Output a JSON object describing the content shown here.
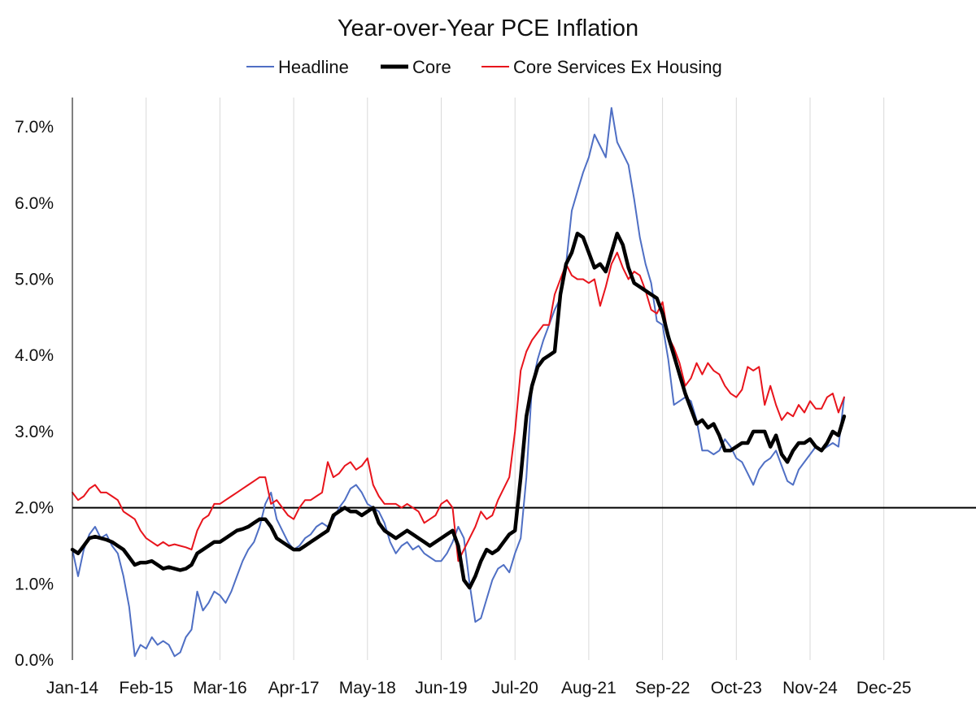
{
  "chart_data": {
    "type": "line",
    "title": "Year-over-Year PCE Inflation",
    "xlabel": "",
    "ylabel": "",
    "x_tick_labels": [
      "Jan-14",
      "Feb-15",
      "Mar-16",
      "Apr-17",
      "May-18",
      "Jun-19",
      "Jul-20",
      "Aug-21",
      "Sep-22",
      "Oct-23",
      "Nov-24",
      "Dec-25"
    ],
    "y_tick_labels": [
      "0.0%",
      "1.0%",
      "2.0%",
      "3.0%",
      "4.0%",
      "5.0%",
      "6.0%",
      "7.0%"
    ],
    "ylim": [
      0,
      7.2
    ],
    "x_start": "Jan-14",
    "x_end": "Apr-26",
    "grid": "vertical",
    "legend_position": "top",
    "reference_line": 2.0,
    "colors": {
      "Headline": "#4f6fc4",
      "Core": "#000000",
      "Core Services Ex Housing": "#e8141c",
      "grid": "#d9d9d9",
      "axis": "#000000"
    },
    "series": [
      {
        "name": "Headline",
        "values": [
          1.45,
          1.1,
          1.45,
          1.65,
          1.75,
          1.6,
          1.65,
          1.5,
          1.4,
          1.1,
          0.7,
          0.05,
          0.2,
          0.15,
          0.3,
          0.2,
          0.25,
          0.2,
          0.05,
          0.1,
          0.3,
          0.4,
          0.9,
          0.65,
          0.75,
          0.9,
          0.85,
          0.75,
          0.9,
          1.1,
          1.3,
          1.45,
          1.55,
          1.75,
          2.05,
          2.2,
          1.85,
          1.7,
          1.55,
          1.45,
          1.5,
          1.6,
          1.65,
          1.75,
          1.8,
          1.75,
          1.85,
          2.0,
          2.1,
          2.25,
          2.3,
          2.2,
          2.05,
          2.0,
          1.95,
          1.8,
          1.55,
          1.4,
          1.5,
          1.55,
          1.45,
          1.5,
          1.4,
          1.35,
          1.3,
          1.3,
          1.4,
          1.55,
          1.75,
          1.6,
          1.0,
          0.5,
          0.55,
          0.8,
          1.05,
          1.2,
          1.25,
          1.15,
          1.4,
          1.6,
          2.4,
          3.6,
          3.95,
          4.2,
          4.4,
          4.6,
          4.75,
          5.2,
          5.9,
          6.15,
          6.4,
          6.6,
          6.9,
          6.75,
          6.6,
          7.25,
          6.8,
          6.65,
          6.5,
          6.05,
          5.55,
          5.2,
          4.95,
          4.45,
          4.4,
          3.95,
          3.35,
          3.4,
          3.45,
          3.4,
          3.15,
          2.75,
          2.75,
          2.7,
          2.75,
          2.9,
          2.8,
          2.65,
          2.6,
          2.45,
          2.3,
          2.5,
          2.6,
          2.65,
          2.75,
          2.55,
          2.35,
          2.3,
          2.5,
          2.6,
          2.7,
          2.8,
          2.75,
          2.8,
          2.85,
          2.8,
          3.45
        ]
      },
      {
        "name": "Core",
        "values": [
          1.45,
          1.4,
          1.5,
          1.6,
          1.62,
          1.6,
          1.58,
          1.55,
          1.5,
          1.45,
          1.35,
          1.25,
          1.28,
          1.28,
          1.3,
          1.25,
          1.2,
          1.22,
          1.2,
          1.18,
          1.2,
          1.25,
          1.4,
          1.45,
          1.5,
          1.55,
          1.55,
          1.6,
          1.65,
          1.7,
          1.72,
          1.75,
          1.8,
          1.85,
          1.85,
          1.75,
          1.6,
          1.55,
          1.5,
          1.45,
          1.45,
          1.5,
          1.55,
          1.6,
          1.65,
          1.7,
          1.9,
          1.95,
          2.0,
          1.95,
          1.95,
          1.9,
          1.95,
          2.0,
          1.8,
          1.7,
          1.65,
          1.6,
          1.65,
          1.7,
          1.65,
          1.6,
          1.55,
          1.5,
          1.55,
          1.6,
          1.65,
          1.7,
          1.5,
          1.05,
          0.95,
          1.1,
          1.3,
          1.45,
          1.4,
          1.45,
          1.55,
          1.65,
          1.7,
          2.4,
          3.2,
          3.6,
          3.85,
          3.95,
          4.0,
          4.05,
          4.8,
          5.2,
          5.35,
          5.6,
          5.55,
          5.35,
          5.15,
          5.2,
          5.1,
          5.35,
          5.6,
          5.45,
          5.15,
          4.95,
          4.9,
          4.85,
          4.8,
          4.75,
          4.55,
          4.25,
          4.0,
          3.75,
          3.5,
          3.3,
          3.1,
          3.15,
          3.05,
          3.1,
          2.95,
          2.75,
          2.75,
          2.8,
          2.85,
          2.85,
          3.0,
          3.0,
          3.0,
          2.8,
          2.95,
          2.7,
          2.6,
          2.75,
          2.85,
          2.85,
          2.9,
          2.8,
          2.75,
          2.85,
          3.0,
          2.95,
          3.2
        ]
      },
      {
        "name": "Core Services Ex Housing",
        "values": [
          2.2,
          2.1,
          2.15,
          2.25,
          2.3,
          2.2,
          2.2,
          2.15,
          2.1,
          1.95,
          1.9,
          1.85,
          1.7,
          1.6,
          1.55,
          1.5,
          1.55,
          1.5,
          1.52,
          1.5,
          1.48,
          1.45,
          1.7,
          1.85,
          1.9,
          2.05,
          2.05,
          2.1,
          2.15,
          2.2,
          2.25,
          2.3,
          2.35,
          2.4,
          2.4,
          2.05,
          2.1,
          2.0,
          1.9,
          1.85,
          2.0,
          2.1,
          2.1,
          2.15,
          2.2,
          2.6,
          2.4,
          2.45,
          2.55,
          2.6,
          2.5,
          2.55,
          2.65,
          2.3,
          2.15,
          2.05,
          2.05,
          2.05,
          2.0,
          2.05,
          2.0,
          1.95,
          1.8,
          1.85,
          1.9,
          2.05,
          2.1,
          2.0,
          1.3,
          1.45,
          1.6,
          1.75,
          1.95,
          1.85,
          1.9,
          2.1,
          2.25,
          2.4,
          3.0,
          3.8,
          4.05,
          4.2,
          4.3,
          4.4,
          4.4,
          4.8,
          5.0,
          5.2,
          5.05,
          5.0,
          5.0,
          4.95,
          5.0,
          4.65,
          4.9,
          5.2,
          5.35,
          5.15,
          5.0,
          5.1,
          5.05,
          4.85,
          4.6,
          4.55,
          4.7,
          4.25,
          4.1,
          3.9,
          3.6,
          3.7,
          3.9,
          3.75,
          3.9,
          3.8,
          3.75,
          3.6,
          3.5,
          3.45,
          3.55,
          3.85,
          3.8,
          3.85,
          3.35,
          3.6,
          3.35,
          3.15,
          3.25,
          3.2,
          3.35,
          3.25,
          3.4,
          3.3,
          3.3,
          3.45,
          3.5,
          3.25,
          3.45
        ]
      }
    ]
  }
}
